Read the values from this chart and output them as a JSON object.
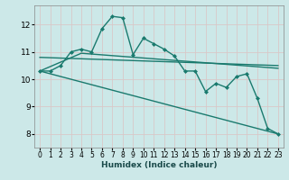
{
  "xlabel": "Humidex (Indice chaleur)",
  "background_color": "#cce8e8",
  "grid_color": "#b8d8d8",
  "line_color": "#1a7a6e",
  "xlim": [
    -0.5,
    23.5
  ],
  "ylim": [
    7.5,
    12.7
  ],
  "xticks": [
    0,
    1,
    2,
    3,
    4,
    5,
    6,
    7,
    8,
    9,
    10,
    11,
    12,
    13,
    14,
    15,
    16,
    17,
    18,
    19,
    20,
    21,
    22,
    23
  ],
  "yticks": [
    8,
    9,
    10,
    11,
    12
  ],
  "lines": [
    {
      "x": [
        0,
        1,
        2,
        3,
        4,
        5,
        6,
        7,
        8,
        9,
        10,
        11,
        12,
        13,
        14,
        15,
        16,
        17,
        18,
        19,
        20,
        21,
        22,
        23
      ],
      "y": [
        10.3,
        10.3,
        10.5,
        11.0,
        11.1,
        11.0,
        11.85,
        12.3,
        12.25,
        10.9,
        11.5,
        11.3,
        11.1,
        10.85,
        10.3,
        10.3,
        9.55,
        9.85,
        9.7,
        10.1,
        10.2,
        9.3,
        8.2,
        8.0
      ],
      "marker": "D",
      "markersize": 2.0,
      "linewidth": 1.0
    },
    {
      "x": [
        0,
        23
      ],
      "y": [
        10.8,
        10.5
      ],
      "marker": null,
      "markersize": 0,
      "linewidth": 1.0
    },
    {
      "x": [
        0,
        4,
        23
      ],
      "y": [
        10.3,
        10.95,
        10.4
      ],
      "marker": null,
      "markersize": 0,
      "linewidth": 1.0
    },
    {
      "x": [
        0,
        23
      ],
      "y": [
        10.3,
        8.0
      ],
      "marker": null,
      "markersize": 0,
      "linewidth": 1.0
    }
  ]
}
